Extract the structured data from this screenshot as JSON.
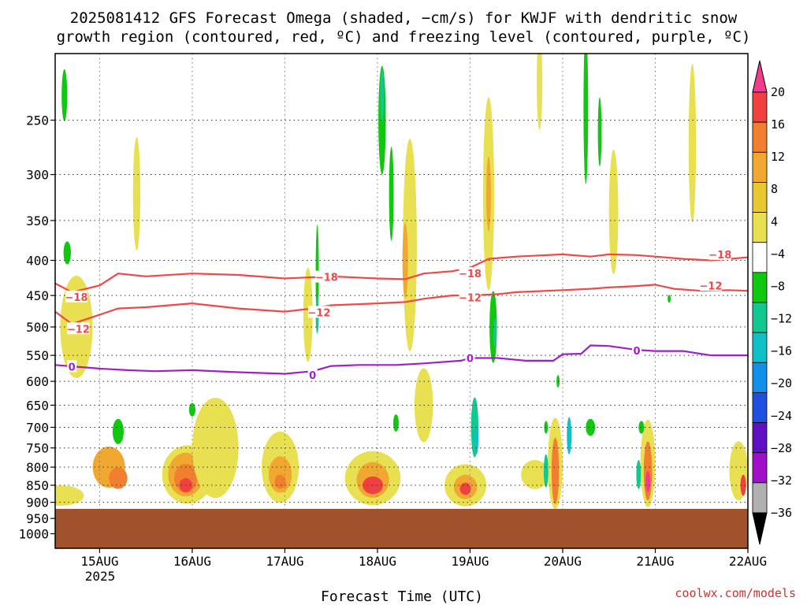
{
  "title_line1": "2025081412 GFS Forecast Omega (shaded, −cm/s) for KWJF with dendritic snow",
  "title_line2": "growth region (contoured, red, ºC) and freezing level (contoured, purple, ºC)",
  "xlabel": "Forecast Time (UTC)",
  "credit": "coolwx.com/models",
  "chart_data": {
    "type": "heatmap",
    "x_axis": {
      "ticks": [
        "15AUG",
        "16AUG",
        "17AUG",
        "18AUG",
        "19AUG",
        "20AUG",
        "21AUG",
        "22AUG"
      ],
      "year_label": "2025",
      "range_days": [
        14.52,
        22.0
      ]
    },
    "y_axis": {
      "scale": "log-pressure",
      "ticks": [
        "250",
        "300",
        "350",
        "400",
        "450",
        "500",
        "550",
        "600",
        "650",
        "700",
        "750",
        "800",
        "850",
        "900",
        "950",
        "1000"
      ],
      "tick_values": [
        250,
        300,
        350,
        400,
        450,
        500,
        550,
        600,
        650,
        700,
        750,
        800,
        850,
        900,
        950,
        1000
      ],
      "range_hpa": [
        200,
        1050
      ]
    },
    "grid": true,
    "surface_below_hpa": 920,
    "colorbar": {
      "labels": [
        "20",
        "16",
        "12",
        "8",
        "4",
        "−4",
        "−8",
        "−12",
        "−16",
        "−20",
        "−24",
        "−28",
        "−32",
        "−36"
      ],
      "colors": [
        "#f03c8c",
        "#f04040",
        "#f08030",
        "#f0a830",
        "#e8c830",
        "#e8e050",
        "#ffffff",
        "#10c810",
        "#10c890",
        "#10c0c8",
        "#1090e8",
        "#2050e0",
        "#6010c0",
        "#a010c8",
        "#b0b0b0",
        "#000000"
      ]
    },
    "contours": [
      {
        "label": "−18",
        "color": "#f04848",
        "x": [
          14.52,
          14.7,
          15.0,
          15.2,
          15.5,
          16.0,
          16.5,
          17.0,
          17.5,
          18.0,
          18.3,
          18.5,
          18.8,
          19.0,
          19.2,
          19.5,
          20.0,
          20.3,
          20.5,
          20.8,
          21.0,
          21.3,
          21.6,
          22.0
        ],
        "p": [
          432,
          445,
          435,
          418,
          422,
          418,
          420,
          425,
          422,
          425,
          426,
          418,
          415,
          410,
          398,
          395,
          392,
          395,
          392,
          393,
          395,
          398,
          400,
          396
        ]
      },
      {
        "label": "−12",
        "color": "#f04848",
        "x": [
          14.52,
          14.7,
          15.0,
          15.2,
          15.5,
          16.0,
          16.5,
          17.0,
          17.3,
          17.5,
          18.0,
          18.3,
          18.5,
          18.8,
          19.0,
          19.3,
          19.5,
          20.0,
          20.3,
          20.5,
          20.8,
          21.0,
          21.2,
          21.5,
          21.8,
          22.0
        ],
        "p": [
          475,
          495,
          480,
          470,
          468,
          462,
          470,
          475,
          470,
          465,
          462,
          460,
          455,
          450,
          450,
          448,
          445,
          442,
          440,
          438,
          436,
          434,
          440,
          443,
          442,
          443
        ]
      },
      {
        "label": "0",
        "color": "#a020c8",
        "x": [
          14.52,
          14.8,
          15.0,
          15.3,
          15.6,
          16.0,
          16.5,
          17.0,
          17.3,
          17.5,
          17.8,
          18.2,
          18.5,
          18.9,
          19.0,
          19.3,
          19.6,
          19.9,
          20.0,
          20.2,
          20.3,
          20.5,
          20.8,
          21.0,
          21.3,
          21.6,
          22.0
        ],
        "p": [
          568,
          572,
          575,
          578,
          580,
          578,
          582,
          585,
          580,
          570,
          568,
          568,
          565,
          560,
          555,
          555,
          560,
          560,
          548,
          547,
          532,
          533,
          540,
          542,
          542,
          550,
          550
        ]
      }
    ],
    "contour_labels": [
      {
        "text": "−18",
        "x": 14.75,
        "p": 452
      },
      {
        "text": "−18",
        "x": 17.45,
        "p": 423
      },
      {
        "text": "−18",
        "x": 19.0,
        "p": 418
      },
      {
        "text": "−18",
        "x": 21.7,
        "p": 392
      },
      {
        "text": "−12",
        "x": 14.77,
        "p": 503
      },
      {
        "text": "−12",
        "x": 17.37,
        "p": 476
      },
      {
        "text": "−12",
        "x": 19.0,
        "p": 453
      },
      {
        "text": "−12",
        "x": 21.6,
        "p": 435
      },
      {
        "text": "0",
        "x": 14.7,
        "p": 571
      },
      {
        "text": "0",
        "x": 17.3,
        "p": 587
      },
      {
        "text": "0",
        "x": 19.0,
        "p": 555
      },
      {
        "text": "0",
        "x": 20.8,
        "p": 541
      }
    ],
    "omega_regions": [
      {
        "value": 6,
        "x": 14.58,
        "p": 880,
        "w": 0.5,
        "h": 60
      },
      {
        "value": 10,
        "x": 15.1,
        "p": 800,
        "w": 0.35,
        "h": 110
      },
      {
        "value": 14,
        "x": 15.2,
        "p": 830,
        "w": 0.2,
        "h": 60
      },
      {
        "value": 6,
        "x": 15.95,
        "p": 820,
        "w": 0.55,
        "h": 160
      },
      {
        "value": 10,
        "x": 15.93,
        "p": 820,
        "w": 0.38,
        "h": 120
      },
      {
        "value": 14,
        "x": 15.93,
        "p": 830,
        "w": 0.25,
        "h": 80
      },
      {
        "value": 18,
        "x": 15.93,
        "p": 850,
        "w": 0.14,
        "h": 40
      },
      {
        "value": 6,
        "x": 16.95,
        "p": 800,
        "w": 0.4,
        "h": 190
      },
      {
        "value": 10,
        "x": 16.95,
        "p": 820,
        "w": 0.25,
        "h": 100
      },
      {
        "value": 14,
        "x": 16.95,
        "p": 840,
        "w": 0.12,
        "h": 40
      },
      {
        "value": 6,
        "x": 17.95,
        "p": 830,
        "w": 0.6,
        "h": 150
      },
      {
        "value": 10,
        "x": 17.95,
        "p": 835,
        "w": 0.35,
        "h": 100
      },
      {
        "value": 16,
        "x": 17.95,
        "p": 850,
        "w": 0.22,
        "h": 50
      },
      {
        "value": 6,
        "x": 18.95,
        "p": 850,
        "w": 0.45,
        "h": 120
      },
      {
        "value": 10,
        "x": 18.95,
        "p": 855,
        "w": 0.25,
        "h": 70
      },
      {
        "value": 16,
        "x": 18.95,
        "p": 860,
        "w": 0.12,
        "h": 35
      },
      {
        "value": 6,
        "x": 19.92,
        "p": 790,
        "w": 0.16,
        "h": 240
      },
      {
        "value": 14,
        "x": 19.92,
        "p": 810,
        "w": 0.08,
        "h": 180
      },
      {
        "value": 6,
        "x": 20.92,
        "p": 790,
        "w": 0.16,
        "h": 230
      },
      {
        "value": 14,
        "x": 20.92,
        "p": 810,
        "w": 0.09,
        "h": 160
      },
      {
        "value": 20,
        "x": 20.92,
        "p": 840,
        "w": 0.05,
        "h": 60
      },
      {
        "value": 6,
        "x": 21.9,
        "p": 810,
        "w": 0.2,
        "h": 160
      },
      {
        "value": 16,
        "x": 21.95,
        "p": 850,
        "w": 0.06,
        "h": 60
      },
      {
        "value": 5,
        "x": 14.75,
        "p": 500,
        "w": 0.35,
        "h": 170
      },
      {
        "value": 5,
        "x": 15.4,
        "p": 320,
        "w": 0.08,
        "h": 120
      },
      {
        "value": 5,
        "x": 17.25,
        "p": 480,
        "w": 0.1,
        "h": 150
      },
      {
        "value": 5,
        "x": 18.35,
        "p": 380,
        "w": 0.15,
        "h": 260
      },
      {
        "value": 8,
        "x": 18.3,
        "p": 400,
        "w": 0.06,
        "h": 100
      },
      {
        "value": 5,
        "x": 19.2,
        "p": 320,
        "w": 0.12,
        "h": 200
      },
      {
        "value": 10,
        "x": 19.2,
        "p": 320,
        "w": 0.05,
        "h": 80
      },
      {
        "value": 5,
        "x": 19.75,
        "p": 220,
        "w": 0.06,
        "h": 70
      },
      {
        "value": 5,
        "x": 21.4,
        "p": 270,
        "w": 0.08,
        "h": 140
      },
      {
        "value": 5,
        "x": 20.55,
        "p": 340,
        "w": 0.1,
        "h": 140
      },
      {
        "value": 5,
        "x": 18.5,
        "p": 650,
        "w": 0.2,
        "h": 160
      },
      {
        "value": 5,
        "x": 16.25,
        "p": 750,
        "w": 0.5,
        "h": 250
      },
      {
        "value": 5,
        "x": 19.7,
        "p": 820,
        "w": 0.3,
        "h": 80
      },
      {
        "value": -6,
        "x": 14.62,
        "p": 230,
        "w": 0.06,
        "h": 40
      },
      {
        "value": -6,
        "x": 14.65,
        "p": 390,
        "w": 0.08,
        "h": 30
      },
      {
        "value": -6,
        "x": 15.2,
        "p": 710,
        "w": 0.12,
        "h": 60
      },
      {
        "value": -6,
        "x": 16.0,
        "p": 660,
        "w": 0.07,
        "h": 30
      },
      {
        "value": -6,
        "x": 17.35,
        "p": 420,
        "w": 0.03,
        "h": 140
      },
      {
        "value": -10,
        "x": 17.35,
        "p": 480,
        "w": 0.02,
        "h": 60
      },
      {
        "value": -6,
        "x": 18.05,
        "p": 250,
        "w": 0.08,
        "h": 90
      },
      {
        "value": -10,
        "x": 18.05,
        "p": 230,
        "w": 0.04,
        "h": 40
      },
      {
        "value": -6,
        "x": 18.15,
        "p": 320,
        "w": 0.05,
        "h": 100
      },
      {
        "value": -6,
        "x": 18.2,
        "p": 690,
        "w": 0.06,
        "h": 40
      },
      {
        "value": -6,
        "x": 19.25,
        "p": 500,
        "w": 0.08,
        "h": 120
      },
      {
        "value": -10,
        "x": 19.27,
        "p": 510,
        "w": 0.03,
        "h": 50
      },
      {
        "value": -8,
        "x": 19.05,
        "p": 700,
        "w": 0.08,
        "h": 140
      },
      {
        "value": -12,
        "x": 19.07,
        "p": 730,
        "w": 0.04,
        "h": 70
      },
      {
        "value": -10,
        "x": 19.82,
        "p": 810,
        "w": 0.05,
        "h": 90
      },
      {
        "value": -6,
        "x": 19.82,
        "p": 700,
        "w": 0.04,
        "h": 30
      },
      {
        "value": -12,
        "x": 20.07,
        "p": 720,
        "w": 0.05,
        "h": 90
      },
      {
        "value": -6,
        "x": 19.95,
        "p": 600,
        "w": 0.03,
        "h": 25
      },
      {
        "value": -6,
        "x": 20.3,
        "p": 700,
        "w": 0.1,
        "h": 40
      },
      {
        "value": -6,
        "x": 20.25,
        "p": 240,
        "w": 0.05,
        "h": 120
      },
      {
        "value": -6,
        "x": 20.4,
        "p": 260,
        "w": 0.04,
        "h": 60
      },
      {
        "value": -10,
        "x": 20.82,
        "p": 820,
        "w": 0.05,
        "h": 80
      },
      {
        "value": -6,
        "x": 20.85,
        "p": 700,
        "w": 0.06,
        "h": 30
      },
      {
        "value": -6,
        "x": 21.15,
        "p": 455,
        "w": 0.03,
        "h": 12
      }
    ]
  }
}
